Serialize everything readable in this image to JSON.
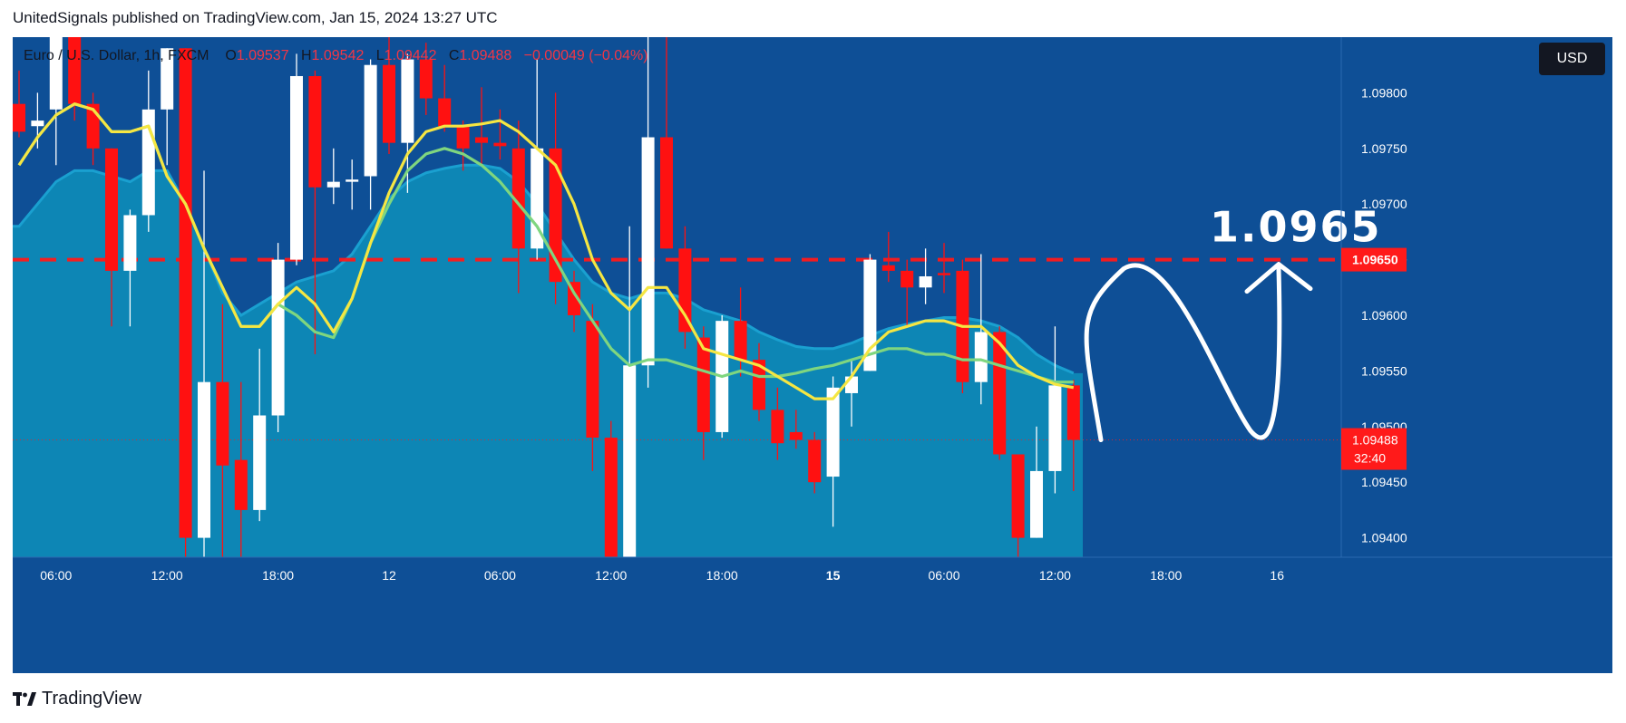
{
  "header": {
    "publisher_line": "UnitedSignals published on TradingView.com, Jan 15, 2024 13:27 UTC"
  },
  "legend": {
    "symbol": "Euro / U.S. Dollar, 1h, FXCM",
    "o_label": "O",
    "o_value": "1.09537",
    "h_label": "H",
    "h_value": "1.09542",
    "l_label": "L",
    "l_value": "1.09442",
    "c_label": "C",
    "c_value": "1.09488",
    "change": "−0.00049 (−0.04%)"
  },
  "currency_button": "USD",
  "footer": {
    "logo_text": "TradingView"
  },
  "colors": {
    "background": "#0e4f96",
    "area_fill": "#0d86b5",
    "area_edge": "#1aa0d0",
    "bull": "#ffffff",
    "bear": "#ff1111",
    "ema_fast": "#f5e642",
    "ema_slow": "#7fd67f",
    "level_line": "#ff1a1a",
    "accent_red": "#f23645",
    "axis_bg": "#0e4f96",
    "axis_text": "#ffffff"
  },
  "chart_data": {
    "type": "candlestick",
    "title": "Euro / U.S. Dollar, 1h, FXCM",
    "ylim": [
      1.0935,
      1.0985
    ],
    "y_ticks": [
      "1.09800",
      "1.09750",
      "1.09700",
      "1.09650",
      "1.09600",
      "1.09550",
      "1.09500",
      "1.09450",
      "1.09400"
    ],
    "x_ticks": [
      "06:00",
      "12:00",
      "18:00",
      "12",
      "06:00",
      "12:00",
      "18:00",
      "15",
      "06:00",
      "12:00",
      "18:00",
      "16"
    ],
    "x_tick_index": [
      2,
      8,
      14,
      20,
      26,
      32,
      38,
      44,
      50,
      56,
      62,
      68
    ],
    "x_tick_bold": [
      false,
      false,
      false,
      false,
      false,
      false,
      false,
      true,
      false,
      false,
      false,
      false
    ],
    "candles": [
      {
        "o": 1.0979,
        "h": 1.0982,
        "l": 1.0976,
        "c": 1.09765
      },
      {
        "o": 1.0977,
        "h": 1.098,
        "l": 1.0975,
        "c": 1.09775
      },
      {
        "o": 1.09785,
        "h": 1.0988,
        "l": 1.09735,
        "c": 1.09865
      },
      {
        "o": 1.09865,
        "h": 1.0987,
        "l": 1.09775,
        "c": 1.0979
      },
      {
        "o": 1.0979,
        "h": 1.098,
        "l": 1.09735,
        "c": 1.0975
      },
      {
        "o": 1.0975,
        "h": 1.0975,
        "l": 1.0959,
        "c": 1.0964
      },
      {
        "o": 1.0964,
        "h": 1.09695,
        "l": 1.0959,
        "c": 1.0969
      },
      {
        "o": 1.0969,
        "h": 1.0982,
        "l": 1.09675,
        "c": 1.09785
      },
      {
        "o": 1.09785,
        "h": 1.0984,
        "l": 1.09735,
        "c": 1.0984
      },
      {
        "o": 1.0984,
        "h": 1.0984,
        "l": 1.0935,
        "c": 1.094
      },
      {
        "o": 1.094,
        "h": 1.0973,
        "l": 1.0935,
        "c": 1.0954
      },
      {
        "o": 1.0954,
        "h": 1.0961,
        "l": 1.0935,
        "c": 1.09465
      },
      {
        "o": 1.0947,
        "h": 1.0954,
        "l": 1.0937,
        "c": 1.09425
      },
      {
        "o": 1.09425,
        "h": 1.0957,
        "l": 1.09415,
        "c": 1.0951
      },
      {
        "o": 1.0951,
        "h": 1.09665,
        "l": 1.09495,
        "c": 1.0965
      },
      {
        "o": 1.0965,
        "h": 1.09835,
        "l": 1.09645,
        "c": 1.09815
      },
      {
        "o": 1.09815,
        "h": 1.0982,
        "l": 1.09565,
        "c": 1.09715
      },
      {
        "o": 1.09715,
        "h": 1.0975,
        "l": 1.097,
        "c": 1.0972
      },
      {
        "o": 1.0972,
        "h": 1.0974,
        "l": 1.09695,
        "c": 1.09722
      },
      {
        "o": 1.09725,
        "h": 1.0983,
        "l": 1.09695,
        "c": 1.09825
      },
      {
        "o": 1.09825,
        "h": 1.0985,
        "l": 1.09745,
        "c": 1.09755
      },
      {
        "o": 1.09755,
        "h": 1.09835,
        "l": 1.0971,
        "c": 1.0983
      },
      {
        "o": 1.0983,
        "h": 1.09845,
        "l": 1.0978,
        "c": 1.09795
      },
      {
        "o": 1.09795,
        "h": 1.09825,
        "l": 1.09765,
        "c": 1.0977
      },
      {
        "o": 1.0977,
        "h": 1.09775,
        "l": 1.0973,
        "c": 1.0975
      },
      {
        "o": 1.0976,
        "h": 1.09805,
        "l": 1.09735,
        "c": 1.09755
      },
      {
        "o": 1.09755,
        "h": 1.09785,
        "l": 1.0974,
        "c": 1.09752
      },
      {
        "o": 1.0975,
        "h": 1.09775,
        "l": 1.0962,
        "c": 1.0966
      },
      {
        "o": 1.0966,
        "h": 1.0983,
        "l": 1.0965,
        "c": 1.0975
      },
      {
        "o": 1.0975,
        "h": 1.098,
        "l": 1.0961,
        "c": 1.0963
      },
      {
        "o": 1.0963,
        "h": 1.0964,
        "l": 1.09585,
        "c": 1.096
      },
      {
        "o": 1.09595,
        "h": 1.0961,
        "l": 1.0946,
        "c": 1.0949
      },
      {
        "o": 1.0949,
        "h": 1.09505,
        "l": 1.0937,
        "c": 1.0938
      },
      {
        "o": 1.0938,
        "h": 1.0968,
        "l": 1.0936,
        "c": 1.09555
      },
      {
        "o": 1.09555,
        "h": 1.09875,
        "l": 1.09535,
        "c": 1.0976
      },
      {
        "o": 1.0976,
        "h": 1.0985,
        "l": 1.0966,
        "c": 1.0966
      },
      {
        "o": 1.0966,
        "h": 1.0968,
        "l": 1.0957,
        "c": 1.09585
      },
      {
        "o": 1.0958,
        "h": 1.0959,
        "l": 1.0947,
        "c": 1.09495
      },
      {
        "o": 1.09495,
        "h": 1.096,
        "l": 1.0949,
        "c": 1.09595
      },
      {
        "o": 1.09595,
        "h": 1.09625,
        "l": 1.09545,
        "c": 1.0956
      },
      {
        "o": 1.0956,
        "h": 1.09575,
        "l": 1.09505,
        "c": 1.09515
      },
      {
        "o": 1.09515,
        "h": 1.09535,
        "l": 1.0947,
        "c": 1.09485
      },
      {
        "o": 1.09495,
        "h": 1.09515,
        "l": 1.0948,
        "c": 1.09488
      },
      {
        "o": 1.09488,
        "h": 1.09495,
        "l": 1.0944,
        "c": 1.0945
      },
      {
        "o": 1.09455,
        "h": 1.09545,
        "l": 1.0941,
        "c": 1.09535
      },
      {
        "o": 1.0953,
        "h": 1.0956,
        "l": 1.095,
        "c": 1.09545
      },
      {
        "o": 1.0955,
        "h": 1.09655,
        "l": 1.0955,
        "c": 1.0965
      },
      {
        "o": 1.09645,
        "h": 1.09675,
        "l": 1.0963,
        "c": 1.0964
      },
      {
        "o": 1.0964,
        "h": 1.0965,
        "l": 1.0959,
        "c": 1.09625
      },
      {
        "o": 1.09625,
        "h": 1.0966,
        "l": 1.0961,
        "c": 1.09635
      },
      {
        "o": 1.09638,
        "h": 1.09665,
        "l": 1.0962,
        "c": 1.09636
      },
      {
        "o": 1.0964,
        "h": 1.0965,
        "l": 1.0953,
        "c": 1.0954
      },
      {
        "o": 1.0954,
        "h": 1.09655,
        "l": 1.0952,
        "c": 1.09585
      },
      {
        "o": 1.09585,
        "h": 1.0959,
        "l": 1.0947,
        "c": 1.09475
      },
      {
        "o": 1.09475,
        "h": 1.09475,
        "l": 1.0935,
        "c": 1.094
      },
      {
        "o": 1.094,
        "h": 1.095,
        "l": 1.094,
        "c": 1.0946
      },
      {
        "o": 1.0946,
        "h": 1.0959,
        "l": 1.0944,
        "c": 1.09537
      },
      {
        "o": 1.09537,
        "h": 1.09542,
        "l": 1.09442,
        "c": 1.09488
      }
    ],
    "ema_fast": [
      1.09735,
      1.0976,
      1.0978,
      1.0979,
      1.09785,
      1.09765,
      1.09765,
      1.0977,
      1.09725,
      1.097,
      1.0966,
      1.09625,
      1.0959,
      1.0959,
      1.0961,
      1.09625,
      1.0961,
      1.09585,
      1.09615,
      1.09665,
      1.0971,
      1.09745,
      1.09765,
      1.0977,
      1.0977,
      1.09772,
      1.09775,
      1.09765,
      1.0975,
      1.09735,
      1.097,
      1.0965,
      1.0962,
      1.09605,
      1.09625,
      1.09625,
      1.096,
      1.0957,
      1.09565,
      1.0956,
      1.09555,
      1.09545,
      1.09535,
      1.09525,
      1.09525,
      1.09545,
      1.0957,
      1.09585,
      1.0959,
      1.09595,
      1.09595,
      1.0959,
      1.0959,
      1.09575,
      1.09555,
      1.09545,
      1.09538,
      1.09535
    ],
    "ema_slow": [
      1.09735,
      1.0976,
      1.0978,
      1.0979,
      1.09785,
      1.09765,
      1.09765,
      1.0977,
      1.09725,
      1.097,
      1.0966,
      1.09625,
      1.0959,
      1.0959,
      1.0961,
      1.096,
      1.09585,
      1.0958,
      1.09615,
      1.09665,
      1.097,
      1.0973,
      1.09745,
      1.0975,
      1.09745,
      1.09735,
      1.0972,
      1.097,
      1.0968,
      1.0965,
      1.0962,
      1.09595,
      1.0957,
      1.09555,
      1.0956,
      1.0956,
      1.09555,
      1.0955,
      1.09545,
      1.0955,
      1.09545,
      1.09545,
      1.09548,
      1.09552,
      1.09555,
      1.0956,
      1.09565,
      1.0957,
      1.0957,
      1.09565,
      1.09565,
      1.0956,
      1.0956,
      1.09555,
      1.0955,
      1.09545,
      1.0954,
      1.0954
    ],
    "band_upper": [
      1.0968,
      1.097,
      1.0972,
      1.0973,
      1.0973,
      1.09725,
      1.0972,
      1.0973,
      1.0973,
      1.097,
      1.0966,
      1.0962,
      1.096,
      1.0961,
      1.0962,
      1.0963,
      1.09635,
      1.0964,
      1.09655,
      1.0968,
      1.09705,
      1.0972,
      1.09728,
      1.09732,
      1.09735,
      1.09735,
      1.09732,
      1.0972,
      1.097,
      1.09675,
      1.0965,
      1.0963,
      1.0962,
      1.09615,
      1.0962,
      1.0962,
      1.09615,
      1.09605,
      1.096,
      1.09595,
      1.09585,
      1.09578,
      1.09572,
      1.0957,
      1.0957,
      1.09575,
      1.09582,
      1.09588,
      1.09592,
      1.09595,
      1.09598,
      1.09598,
      1.09595,
      1.0959,
      1.0958,
      1.09565,
      1.09555,
      1.09548
    ],
    "level": {
      "value": 1.0965,
      "label": "1.09650"
    },
    "annotation": {
      "text": "1.0965"
    },
    "current_price": {
      "value": 1.09488,
      "label": "1.09488",
      "countdown": "32:40"
    },
    "projection_bars": 14
  }
}
